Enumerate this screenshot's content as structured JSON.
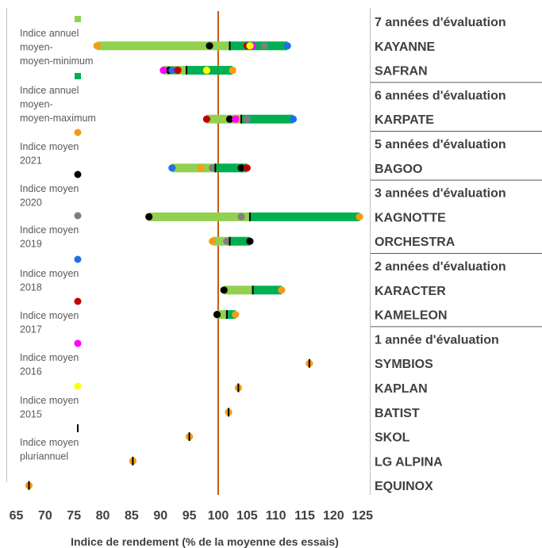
{
  "chart_data": {
    "type": "dot-range",
    "xlabel": "Indice de rendement (% de la moyenne des essais)",
    "xlim": [
      65,
      125
    ],
    "xticks": [
      65,
      70,
      75,
      80,
      85,
      90,
      95,
      100,
      105,
      110,
      115,
      120,
      125
    ],
    "reference_line": 100,
    "colors": {
      "range_min": "#92d050",
      "range_max": "#00b050",
      "reference": "#c55a11",
      "y2021": "#f59b16",
      "y2020": "#000000",
      "y2019": "#7f7f7f",
      "y2018": "#1f6fe5",
      "y2017": "#c00000",
      "y2016": "#ff00ff",
      "y2015": "#ffff00",
      "pluri": "#000000"
    },
    "legend": [
      {
        "key": "min",
        "label": "Indice annuel moyen-minimum",
        "marker": "square",
        "color": "#92d050"
      },
      {
        "key": "max",
        "label": "Indice annuel moyen-maximum",
        "marker": "square",
        "color": "#00b050"
      },
      {
        "key": "y2021",
        "label": "Indice moyen 2021",
        "marker": "circle",
        "color": "#f59b16"
      },
      {
        "key": "y2020",
        "label": "Indice moyen 2020",
        "marker": "circle",
        "color": "#000000"
      },
      {
        "key": "y2019",
        "label": "Indice moyen 2019",
        "marker": "circle",
        "color": "#7f7f7f"
      },
      {
        "key": "y2018",
        "label": "Indice moyen 2018",
        "marker": "circle",
        "color": "#1f6fe5"
      },
      {
        "key": "y2017",
        "label": "Indice moyen 2017",
        "marker": "circle",
        "color": "#c00000"
      },
      {
        "key": "y2016",
        "label": "Indice moyen 2016",
        "marker": "circle",
        "color": "#ff00ff"
      },
      {
        "key": "y2015",
        "label": "Indice moyen 2015",
        "marker": "circle",
        "color": "#ffff00"
      },
      {
        "key": "pluri",
        "label": "Indice moyen pluriannuel",
        "marker": "bar",
        "color": "#000000"
      }
    ],
    "rows": [
      {
        "label": "7 années d'évaluation",
        "type": "header"
      },
      {
        "label": "KAYANNE",
        "min": 79,
        "max": 112,
        "pluri": 102,
        "y2021": 79,
        "y2020": 98.5,
        "y2019": 108,
        "y2018": 112,
        "y2017": 105,
        "y2016": 106,
        "y2015": 105.5
      },
      {
        "label": "SAFRAN",
        "min": 90.5,
        "max": 102.5,
        "pluri": 94.5,
        "y2021": 102.5,
        "y2020": 91.5,
        "y2019": 92.5,
        "y2018": 92,
        "y2017": 93,
        "y2016": 90.5,
        "y2015": 98
      },
      {
        "label": "6 années d'évaluation",
        "type": "header"
      },
      {
        "label": "KARPATE",
        "min": 98,
        "max": 113,
        "pluri": 104,
        "y2021": 103.5,
        "y2020": 102,
        "y2019": 105,
        "y2018": 113,
        "y2017": 98,
        "y2016": 103
      },
      {
        "label": "5 années d'évaluation",
        "type": "header"
      },
      {
        "label": "BAGOO",
        "min": 92,
        "max": 105,
        "pluri": 99.5,
        "y2021": 97,
        "y2020": 104,
        "y2019": 99,
        "y2018": 92,
        "y2017": 105
      },
      {
        "label": "3 années d'évaluation",
        "type": "header"
      },
      {
        "label": "KAGNOTTE",
        "min": 88,
        "max": 124.5,
        "pluri": 105.5,
        "y2021": 124.5,
        "y2020": 88,
        "y2019": 104
      },
      {
        "label": "ORCHESTRA",
        "min": 99,
        "max": 105.5,
        "pluri": 102,
        "y2021": 99,
        "y2020": 105.5,
        "y2019": 101.5
      },
      {
        "label": "2 années d'évaluation",
        "type": "header"
      },
      {
        "label": "KARACTER",
        "min": 101,
        "max": 111,
        "pluri": 106,
        "y2021": 111,
        "y2020": 101
      },
      {
        "label": "KAMELEON",
        "min": 99.8,
        "max": 103,
        "pluri": 101.5,
        "y2021": 103,
        "y2020": 99.8
      },
      {
        "label": "1 année d'évaluation",
        "type": "header"
      },
      {
        "label": "SYMBIOS",
        "pluri": 115.8,
        "y2021": 115.8
      },
      {
        "label": "KAPLAN",
        "pluri": 103.5,
        "y2021": 103.5
      },
      {
        "label": "BATIST",
        "pluri": 101.8,
        "y2021": 101.8
      },
      {
        "label": "SKOL",
        "pluri": 95,
        "y2021": 95
      },
      {
        "label": "LG ALPINA",
        "pluri": 85.2,
        "y2021": 85.2
      },
      {
        "label": "EQUINOX",
        "pluri": 67.2,
        "y2021": 67.2
      }
    ]
  }
}
